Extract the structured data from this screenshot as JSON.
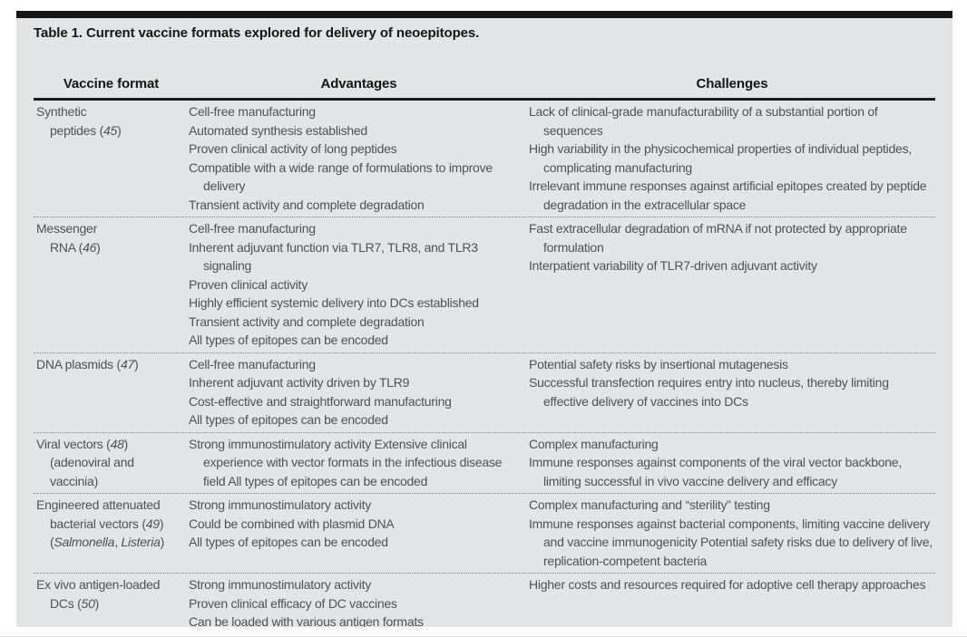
{
  "table": {
    "title": "Table 1. Current vaccine formats explored for delivery of neoepitopes.",
    "headers": [
      "Vaccine format",
      "Advantages",
      "Challenges"
    ],
    "rows": [
      {
        "format_lines": [
          "Synthetic",
          "peptides (*45*)"
        ],
        "advantages": [
          "Cell-free manufacturing",
          "Automated synthesis established",
          "Proven clinical activity of long peptides",
          "Compatible with a wide range of formulations to improve delivery",
          "Transient activity and complete degradation"
        ],
        "challenges": [
          "Lack of clinical-grade manufacturability of a substantial portion of sequences",
          "High variability in the physicochemical properties of individual peptides, complicating manufacturing",
          "Irrelevant immune responses against artificial epitopes created by peptide degradation in the extracellular space"
        ]
      },
      {
        "format_lines": [
          "Messenger",
          "RNA (*46*)"
        ],
        "advantages": [
          "Cell-free manufacturing",
          "Inherent adjuvant function via TLR7, TLR8, and TLR3 signaling",
          "Proven clinical activity",
          "Highly efficient systemic delivery into DCs established",
          "Transient activity and complete degradation",
          "All types of epitopes can be encoded"
        ],
        "challenges": [
          "Fast extracellular degradation of mRNA if not protected by appropriate formulation",
          "Interpatient variability of TLR7-driven adjuvant activity"
        ]
      },
      {
        "format_lines": [
          "DNA plasmids (*47*)"
        ],
        "advantages": [
          "Cell-free manufacturing",
          "Inherent adjuvant activity driven by TLR9",
          "Cost-effective and straightforward manufacturing",
          "All types of epitopes can be encoded"
        ],
        "challenges": [
          "Potential safety risks by insertional mutagenesis",
          "Successful transfection requires entry into nucleus, thereby limiting effective delivery of vaccines into DCs"
        ]
      },
      {
        "format_lines": [
          "Viral vectors (*48*)",
          "(adenoviral and",
          "vaccinia)"
        ],
        "advantages": [
          "Strong immunostimulatory activity Extensive clinical experience with vector formats in the infectious disease field All types of epitopes can be encoded"
        ],
        "challenges": [
          "Complex manufacturing",
          "Immune responses against components of the viral vector backbone, limiting successful in vivo vaccine delivery and efficacy"
        ]
      },
      {
        "format_lines": [
          "Engineered attenuated",
          "bacterial vectors (*49*)",
          "(*Salmonella*, *Listeria*)"
        ],
        "advantages": [
          "Strong immunostimulatory activity",
          "Could be combined with plasmid DNA",
          "All types of epitopes can be encoded"
        ],
        "challenges": [
          "Complex manufacturing and “sterility” testing",
          "Immune responses against bacterial components, limiting vaccine delivery and vaccine immunogenicity Potential safety risks due to delivery of live, replication-competent bacteria"
        ]
      },
      {
        "format_lines": [
          "Ex vivo antigen-loaded",
          "DCs (*50*)"
        ],
        "advantages": [
          "Strong immunostimulatory activity",
          "Proven clinical efficacy of DC vaccines",
          "Can be loaded with various antigen formats"
        ],
        "challenges": [
          "Higher costs and resources required for adoptive cell therapy approaches"
        ]
      }
    ]
  },
  "colors": {
    "panel_background": "#e2e4e5",
    "top_bar": "#161616",
    "heading_text": "#161616",
    "body_text": "#4f5254",
    "header_rule": "#1a1a1a",
    "row_separator_dotted": "#85888a"
  }
}
